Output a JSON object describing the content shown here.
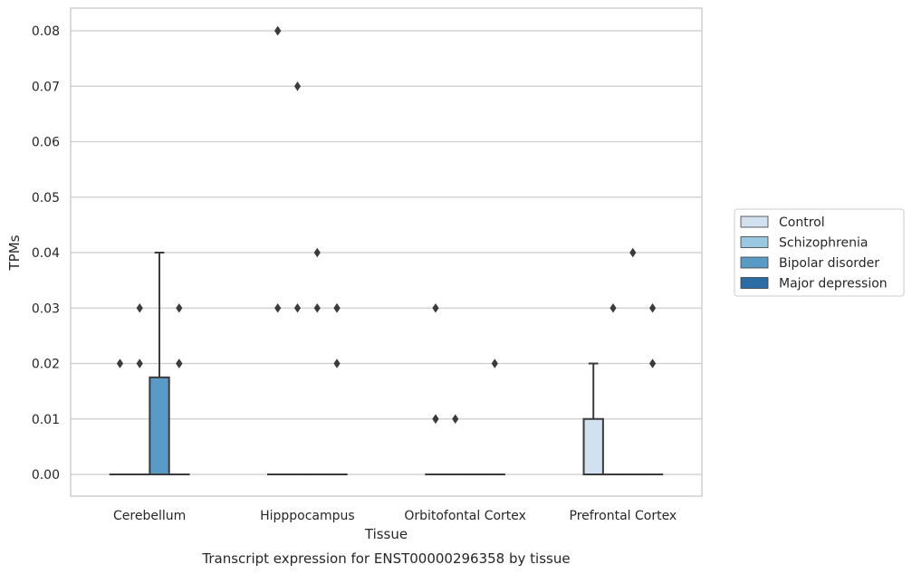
{
  "chart_data": {
    "type": "box",
    "title": "",
    "xlabel": "Tissue",
    "ylabel": "TPMs",
    "caption": "Transcript expression for ENST00000296358 by tissue",
    "ylim": [
      -0.004,
      0.084
    ],
    "yticks": [
      0.0,
      0.01,
      0.02,
      0.03,
      0.04,
      0.05,
      0.06,
      0.07,
      0.08
    ],
    "ytick_labels": [
      "0.00",
      "0.01",
      "0.02",
      "0.03",
      "0.04",
      "0.05",
      "0.06",
      "0.07",
      "0.08"
    ],
    "grid": "horizontal",
    "legend_position": "right",
    "categories": [
      "Cerebellum",
      "Hipppocampus",
      "Orbitofontal Cortex",
      "Prefrontal Cortex"
    ],
    "series": [
      {
        "name": "Control",
        "color": "#d1e1ef",
        "boxes": [
          {
            "q1": 0,
            "median": 0,
            "q3": 0,
            "whisker_low": 0,
            "whisker_high": 0,
            "outliers": [
              0.02
            ]
          },
          {
            "q1": 0,
            "median": 0,
            "q3": 0,
            "whisker_low": 0,
            "whisker_high": 0,
            "outliers": [
              0.03,
              0.08,
              0.08
            ]
          },
          {
            "q1": 0,
            "median": 0,
            "q3": 0,
            "whisker_low": 0,
            "whisker_high": 0,
            "outliers": [
              0.03,
              0.01,
              0.01
            ]
          },
          {
            "q1": 0,
            "median": 0,
            "q3": 0.01,
            "whisker_low": 0,
            "whisker_high": 0.02,
            "outliers": []
          }
        ]
      },
      {
        "name": "Schizophrenia",
        "color": "#9ac8e0",
        "boxes": [
          {
            "q1": 0,
            "median": 0,
            "q3": 0,
            "whisker_low": 0,
            "whisker_high": 0,
            "outliers": [
              0.03,
              0.02
            ]
          },
          {
            "q1": 0,
            "median": 0,
            "q3": 0,
            "whisker_low": 0,
            "whisker_high": 0,
            "outliers": [
              0.07,
              0.03
            ]
          },
          {
            "q1": 0,
            "median": 0,
            "q3": 0,
            "whisker_low": 0,
            "whisker_high": 0,
            "outliers": [
              0.01
            ]
          },
          {
            "q1": 0,
            "median": 0,
            "q3": 0,
            "whisker_low": 0,
            "whisker_high": 0,
            "outliers": [
              0.03
            ]
          }
        ]
      },
      {
        "name": "Bipolar disorder",
        "color": "#5a9ac6",
        "boxes": [
          {
            "q1": 0,
            "median": 0,
            "q3": 0.0175,
            "whisker_low": 0,
            "whisker_high": 0.04,
            "outliers": []
          },
          {
            "q1": 0,
            "median": 0,
            "q3": 0,
            "whisker_low": 0,
            "whisker_high": 0,
            "outliers": [
              0.04,
              0.03
            ]
          },
          {
            "q1": 0,
            "median": 0,
            "q3": 0,
            "whisker_low": 0,
            "whisker_high": 0,
            "outliers": []
          },
          {
            "q1": 0,
            "median": 0,
            "q3": 0,
            "whisker_low": 0,
            "whisker_high": 0,
            "outliers": [
              0.04
            ]
          }
        ]
      },
      {
        "name": "Major depression",
        "color": "#2b6ba6",
        "boxes": [
          {
            "q1": 0,
            "median": 0,
            "q3": 0,
            "whisker_low": 0,
            "whisker_high": 0,
            "outliers": [
              0.03,
              0.02,
              0.02
            ]
          },
          {
            "q1": 0,
            "median": 0,
            "q3": 0,
            "whisker_low": 0,
            "whisker_high": 0,
            "outliers": [
              0.03,
              0.03,
              0.02
            ]
          },
          {
            "q1": 0,
            "median": 0,
            "q3": 0,
            "whisker_low": 0,
            "whisker_high": 0,
            "outliers": [
              0.02
            ]
          },
          {
            "q1": 0,
            "median": 0,
            "q3": 0,
            "whisker_low": 0,
            "whisker_high": 0,
            "outliers": [
              0.03,
              0.02
            ]
          }
        ]
      }
    ]
  }
}
